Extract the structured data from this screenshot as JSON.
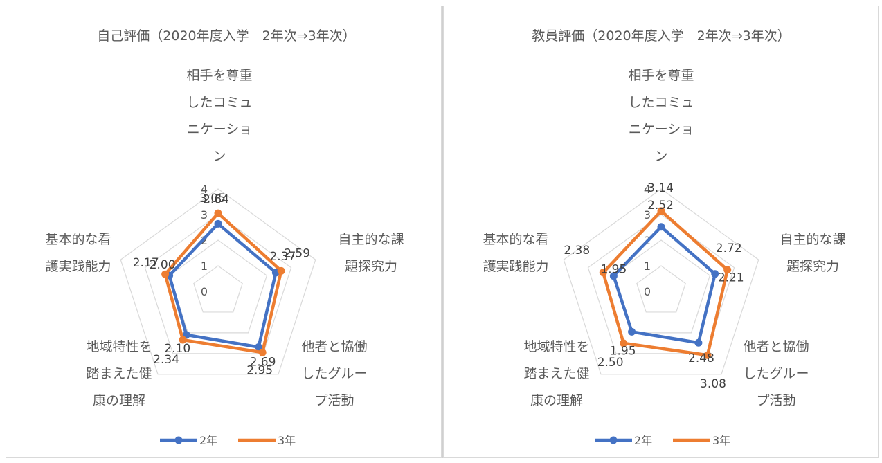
{
  "colors": {
    "series_2nen": "#4472c4",
    "series_3nen": "#ed7d31",
    "grid": "#d9d9d9",
    "text": "#595959"
  },
  "chart_data": [
    {
      "type": "radar",
      "title": "自己評価（2020年度入学　2年次⇒3年次）",
      "categories": [
        [
          "相手を尊重",
          "したコミュ",
          "ニケーショ",
          "ン"
        ],
        [
          "自主的な課",
          "題探究力"
        ],
        [
          "他者と協働",
          "したグルー",
          "プ活動"
        ],
        [
          "地域特性を",
          "踏まえた健",
          "康の理解"
        ],
        [
          "基本的な看",
          "護実践能力"
        ]
      ],
      "r_ticks": [
        "0",
        "1",
        "2",
        "3",
        "4"
      ],
      "rlim": [
        0,
        4
      ],
      "grid": true,
      "legend_position": "bottom",
      "series": [
        {
          "name": "2年",
          "values": [
            2.64,
            2.37,
            2.69,
            2.1,
            2.0
          ],
          "labels": [
            "2.64",
            "2.37",
            "2.69",
            "2.10",
            "2.00"
          ]
        },
        {
          "name": "3年",
          "values": [
            3.05,
            2.59,
            2.95,
            2.34,
            2.17
          ],
          "labels": [
            "3.05",
            "2.59",
            "2.95",
            "2.34",
            "2.17"
          ]
        }
      ]
    },
    {
      "type": "radar",
      "title": "教員評価（2020年度入学　2年次⇒3年次）",
      "categories": [
        [
          "相手を尊重",
          "したコミュ",
          "ニケーショ",
          "ン"
        ],
        [
          "自主的な課",
          "題探究力"
        ],
        [
          "他者と協働",
          "したグルー",
          "プ活動"
        ],
        [
          "地域特性を",
          "踏まえた健",
          "康の理解"
        ],
        [
          "基本的な看",
          "護実践能力"
        ]
      ],
      "r_ticks": [
        "0",
        "1",
        "2",
        "3",
        "4"
      ],
      "rlim": [
        0,
        4
      ],
      "grid": true,
      "legend_position": "bottom",
      "series": [
        {
          "name": "2年",
          "values": [
            2.52,
            2.21,
            2.48,
            1.95,
            1.95
          ],
          "labels": [
            "2.52",
            "2.21",
            "2.48",
            "1.95",
            "1.95"
          ]
        },
        {
          "name": "3年",
          "values": [
            3.14,
            2.72,
            3.08,
            2.5,
            2.38
          ],
          "labels": [
            "3.14",
            "2.72",
            "3.08",
            "2.50",
            "2.38"
          ]
        }
      ]
    }
  ]
}
